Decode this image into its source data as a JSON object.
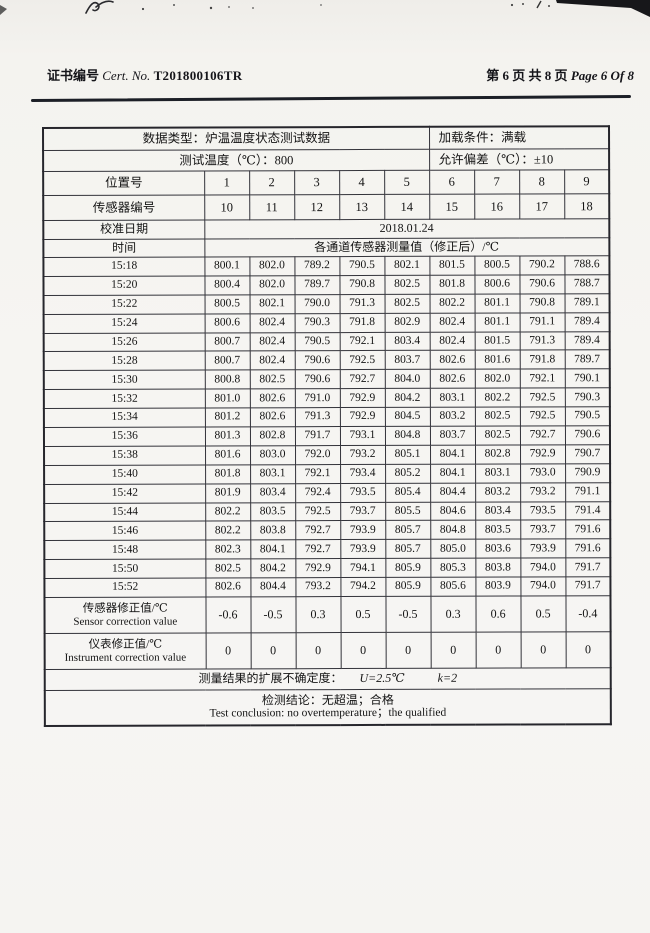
{
  "header": {
    "cert_label": "证书编号",
    "cert_no_label": "Cert. No.",
    "cert_no": "T201800106TR",
    "page_info_cn": "第 6 页 共 8 页",
    "page_info_en": "Page 6 Of 8"
  },
  "table": {
    "data_type_row": {
      "left": "数据类型：炉温温度状态测试数据",
      "right": "加载条件：满载"
    },
    "test_temp_row": {
      "left": "测试温度（℃）：800",
      "right": "允许偏差（℃）：±10"
    },
    "position_label": "位置号",
    "positions": [
      "1",
      "2",
      "3",
      "4",
      "5",
      "6",
      "7",
      "8",
      "9"
    ],
    "sensor_label": "传感器编号",
    "sensors": [
      "10",
      "11",
      "12",
      "13",
      "14",
      "15",
      "16",
      "17",
      "18"
    ],
    "calib_label": "校准日期",
    "calib_date": "2018.01.24",
    "time_label": "时间",
    "channel_header": "各通道传感器测量值（修正后）/℃",
    "readings": [
      {
        "time": "15:18",
        "values": [
          "800.1",
          "802.0",
          "789.2",
          "790.5",
          "802.1",
          "801.5",
          "800.5",
          "790.2",
          "788.6"
        ]
      },
      {
        "time": "15:20",
        "values": [
          "800.4",
          "802.0",
          "789.7",
          "790.8",
          "802.5",
          "801.8",
          "800.6",
          "790.6",
          "788.7"
        ]
      },
      {
        "time": "15:22",
        "values": [
          "800.5",
          "802.1",
          "790.0",
          "791.3",
          "802.5",
          "802.2",
          "801.1",
          "790.8",
          "789.1"
        ]
      },
      {
        "time": "15:24",
        "values": [
          "800.6",
          "802.4",
          "790.3",
          "791.8",
          "802.9",
          "802.4",
          "801.1",
          "791.1",
          "789.4"
        ]
      },
      {
        "time": "15:26",
        "values": [
          "800.7",
          "802.4",
          "790.5",
          "792.1",
          "803.4",
          "802.4",
          "801.5",
          "791.3",
          "789.4"
        ]
      },
      {
        "time": "15:28",
        "values": [
          "800.7",
          "802.4",
          "790.6",
          "792.5",
          "803.7",
          "802.6",
          "801.6",
          "791.8",
          "789.7"
        ]
      },
      {
        "time": "15:30",
        "values": [
          "800.8",
          "802.5",
          "790.6",
          "792.7",
          "804.0",
          "802.6",
          "802.0",
          "792.1",
          "790.1"
        ]
      },
      {
        "time": "15:32",
        "values": [
          "801.0",
          "802.6",
          "791.0",
          "792.9",
          "804.2",
          "803.1",
          "802.2",
          "792.5",
          "790.3"
        ]
      },
      {
        "time": "15:34",
        "values": [
          "801.2",
          "802.6",
          "791.3",
          "792.9",
          "804.5",
          "803.2",
          "802.5",
          "792.5",
          "790.5"
        ]
      },
      {
        "time": "15:36",
        "values": [
          "801.3",
          "802.8",
          "791.7",
          "793.1",
          "804.8",
          "803.7",
          "802.5",
          "792.7",
          "790.6"
        ]
      },
      {
        "time": "15:38",
        "values": [
          "801.6",
          "803.0",
          "792.0",
          "793.2",
          "805.1",
          "804.1",
          "802.8",
          "792.9",
          "790.7"
        ]
      },
      {
        "time": "15:40",
        "values": [
          "801.8",
          "803.1",
          "792.1",
          "793.4",
          "805.2",
          "804.1",
          "803.1",
          "793.0",
          "790.9"
        ]
      },
      {
        "time": "15:42",
        "values": [
          "801.9",
          "803.4",
          "792.4",
          "793.5",
          "805.4",
          "804.4",
          "803.2",
          "793.2",
          "791.1"
        ]
      },
      {
        "time": "15:44",
        "values": [
          "802.2",
          "803.5",
          "792.5",
          "793.7",
          "805.5",
          "804.6",
          "803.4",
          "793.5",
          "791.4"
        ]
      },
      {
        "time": "15:46",
        "values": [
          "802.2",
          "803.8",
          "792.7",
          "793.9",
          "805.7",
          "804.8",
          "803.5",
          "793.7",
          "791.6"
        ]
      },
      {
        "time": "15:48",
        "values": [
          "802.3",
          "804.1",
          "792.7",
          "793.9",
          "805.7",
          "805.0",
          "803.6",
          "793.9",
          "791.6"
        ]
      },
      {
        "time": "15:50",
        "values": [
          "802.5",
          "804.2",
          "792.9",
          "794.1",
          "805.9",
          "805.3",
          "803.8",
          "794.0",
          "791.7"
        ]
      },
      {
        "time": "15:52",
        "values": [
          "802.6",
          "804.4",
          "793.2",
          "794.2",
          "805.9",
          "805.6",
          "803.9",
          "794.0",
          "791.7"
        ]
      }
    ],
    "sensor_correction": {
      "label_cn": "传感器修正值/℃",
      "label_en": "Sensor correction value",
      "values": [
        "-0.6",
        "-0.5",
        "0.3",
        "0.5",
        "-0.5",
        "0.3",
        "0.6",
        "0.5",
        "-0.4"
      ]
    },
    "instrument_correction": {
      "label_cn": "仪表修正值/℃",
      "label_en": "Instrument correction value",
      "values": [
        "0",
        "0",
        "0",
        "0",
        "0",
        "0",
        "0",
        "0",
        "0"
      ]
    },
    "uncertainty": {
      "prefix": "测量结果的扩展不确定度：",
      "u_value": "U=2.5℃",
      "k_value": "k=2"
    },
    "conclusion": {
      "cn": "检测结论：无超温；合格",
      "en": "Test conclusion: no overtemperature；the qualified"
    }
  },
  "colors": {
    "paper": "#f5f4f1",
    "ink": "#1a1a1a",
    "border": "#33333a"
  }
}
